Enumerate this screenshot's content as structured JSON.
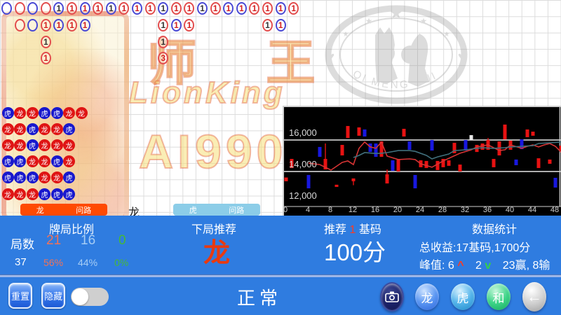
{
  "watermarks": {
    "shiwang": "师 王",
    "lionking": "LionKing",
    "ai990": "AI990",
    "qmh_text": "QI MENG HUI"
  },
  "top_road": {
    "cells": [
      [
        0,
        0,
        "B",
        "",
        ""
      ],
      [
        0,
        1,
        "R",
        "",
        ""
      ],
      [
        0,
        2,
        "B",
        "",
        ""
      ],
      [
        0,
        3,
        "R",
        "",
        ""
      ],
      [
        0,
        4,
        "B",
        "1",
        "k"
      ],
      [
        0,
        5,
        "R",
        "1",
        "r"
      ],
      [
        0,
        6,
        "B",
        "1",
        "r"
      ],
      [
        0,
        7,
        "R",
        "1",
        "r"
      ],
      [
        0,
        8,
        "B",
        "1",
        "k"
      ],
      [
        0,
        9,
        "R",
        "1",
        "r"
      ],
      [
        0,
        10,
        "B",
        "1",
        "r"
      ],
      [
        0,
        11,
        "R",
        "1",
        "r"
      ],
      [
        0,
        12,
        "B",
        "1",
        "k"
      ],
      [
        0,
        13,
        "R",
        "1",
        "r"
      ],
      [
        0,
        14,
        "R",
        "1",
        "r"
      ],
      [
        0,
        15,
        "B",
        "1",
        "k"
      ],
      [
        0,
        16,
        "R",
        "1",
        "r"
      ],
      [
        0,
        17,
        "B",
        "1",
        "r"
      ],
      [
        0,
        18,
        "B",
        "1",
        "r"
      ],
      [
        0,
        19,
        "R",
        "1",
        "r"
      ],
      [
        0,
        20,
        "R",
        "1",
        "r"
      ],
      [
        0,
        21,
        "B",
        "1",
        "r"
      ],
      [
        0,
        22,
        "R",
        "1",
        "r"
      ],
      [
        1,
        1,
        "R",
        "",
        ""
      ],
      [
        1,
        2,
        "B",
        "",
        ""
      ],
      [
        1,
        3,
        "R",
        "1",
        "r"
      ],
      [
        1,
        4,
        "B",
        "1",
        "r"
      ],
      [
        1,
        5,
        "R",
        "1",
        "r"
      ],
      [
        1,
        6,
        "B",
        "1",
        "r"
      ],
      [
        1,
        12,
        "R",
        "1",
        "k"
      ],
      [
        1,
        13,
        "B",
        "1",
        "r"
      ],
      [
        1,
        14,
        "R",
        "1",
        "r"
      ],
      [
        1,
        20,
        "R",
        "1",
        "k"
      ],
      [
        1,
        21,
        "B",
        "1",
        "r"
      ],
      [
        2,
        3,
        "R",
        "1",
        "k"
      ],
      [
        2,
        12,
        "R",
        "1",
        "k"
      ],
      [
        3,
        3,
        "R",
        "1",
        "r"
      ],
      [
        3,
        12,
        "R",
        "3",
        "r"
      ]
    ]
  },
  "bead_road": {
    "cells": [
      [
        0,
        0,
        "虎"
      ],
      [
        0,
        1,
        "龙"
      ],
      [
        0,
        2,
        "龙"
      ],
      [
        0,
        3,
        "虎"
      ],
      [
        0,
        4,
        "虎"
      ],
      [
        0,
        5,
        "龙"
      ],
      [
        0,
        6,
        "龙"
      ],
      [
        1,
        0,
        "龙"
      ],
      [
        1,
        1,
        "龙"
      ],
      [
        1,
        2,
        "虎"
      ],
      [
        1,
        3,
        "龙"
      ],
      [
        1,
        4,
        "龙"
      ],
      [
        1,
        5,
        "虎"
      ],
      [
        2,
        0,
        "龙"
      ],
      [
        2,
        1,
        "龙"
      ],
      [
        2,
        2,
        "虎"
      ],
      [
        2,
        3,
        "龙"
      ],
      [
        2,
        4,
        "龙"
      ],
      [
        2,
        5,
        "龙"
      ],
      [
        3,
        0,
        "虎"
      ],
      [
        3,
        1,
        "虎"
      ],
      [
        3,
        2,
        "龙"
      ],
      [
        3,
        3,
        "龙"
      ],
      [
        3,
        4,
        "虎"
      ],
      [
        3,
        5,
        "龙"
      ],
      [
        4,
        0,
        "虎"
      ],
      [
        4,
        1,
        "虎"
      ],
      [
        4,
        2,
        "虎"
      ],
      [
        4,
        3,
        "龙"
      ],
      [
        4,
        4,
        "龙"
      ],
      [
        4,
        5,
        "虎"
      ],
      [
        5,
        0,
        "龙"
      ],
      [
        5,
        1,
        "龙"
      ],
      [
        5,
        2,
        "龙"
      ],
      [
        5,
        3,
        "虎"
      ],
      [
        5,
        4,
        "虎"
      ],
      [
        5,
        5,
        "虎"
      ]
    ]
  },
  "ask_strip": {
    "dragon_left": "龙",
    "dragon_right": "问路",
    "current": "龙",
    "tiger_left": "虎",
    "tiger_right": "问路"
  },
  "chart_data": {
    "type": "candlestick",
    "y_ticks": [
      {
        "label": "16,000",
        "value": 16000
      },
      {
        "label": "14,000",
        "value": 14000
      },
      {
        "label": "12,000",
        "value": 12000
      }
    ],
    "x_ticks": [
      0,
      4,
      8,
      12,
      16,
      20,
      24,
      28,
      32,
      36,
      40,
      44,
      48
    ],
    "x_range": [
      0,
      50
    ],
    "y_range": [
      11700,
      18100
    ],
    "candles": [
      [
        0,
        "r",
        13620,
        13380
      ],
      [
        1,
        "r",
        14800,
        14220
      ],
      [
        4,
        "b",
        13780,
        12930
      ],
      [
        6,
        "b",
        15560,
        14930
      ],
      [
        7,
        "r",
        14800,
        14130,
        15780,
        null
      ],
      [
        9,
        "r",
        13160,
        13020
      ],
      [
        10,
        "r",
        15690,
        15020
      ],
      [
        11,
        "r",
        16890,
        16130
      ],
      [
        12,
        "r",
        13560,
        13380,
        null,
        13130
      ],
      [
        13,
        "r",
        16800,
        16270
      ],
      [
        14,
        "b",
        16670,
        16220
      ],
      [
        15,
        "b",
        15780,
        15240
      ],
      [
        16,
        "b",
        15780,
        14930
      ],
      [
        17,
        "r",
        15910,
        14930
      ],
      [
        18,
        "r",
        13820,
        13240,
        14130,
        null
      ],
      [
        19,
        "b",
        14710,
        14040
      ],
      [
        20,
        "r",
        14800,
        14000
      ],
      [
        21,
        "r",
        16710,
        16220
      ],
      [
        22,
        "b",
        15910,
        15380
      ],
      [
        23,
        "b",
        13780,
        12930
      ],
      [
        24,
        "r",
        14710,
        14270
      ],
      [
        25,
        "r",
        14670,
        14220
      ],
      [
        26,
        "b",
        16000,
        15330
      ],
      [
        27,
        "r",
        14670,
        14090
      ],
      [
        28,
        "r",
        14800,
        14270
      ],
      [
        29,
        "r",
        14710,
        14360
      ],
      [
        30,
        "r",
        15820,
        15160
      ],
      [
        31,
        "r",
        14440,
        14000
      ],
      [
        32,
        "b",
        16000,
        15330
      ],
      [
        33,
        "w",
        16310,
        16000
      ],
      [
        34,
        "r",
        15690,
        15240
      ],
      [
        35,
        "r",
        15780,
        15380
      ],
      [
        36,
        "r",
        16000,
        15380,
        16130,
        null
      ],
      [
        37,
        "r",
        14800,
        14270
      ],
      [
        38,
        "r",
        15910,
        15020
      ],
      [
        39,
        "r",
        16980,
        16040
      ],
      [
        40,
        "r",
        15960,
        15380
      ],
      [
        41,
        "b",
        14760,
        14400
      ],
      [
        42,
        "b",
        16040,
        15420
      ],
      [
        43,
        "r",
        16670,
        16180
      ],
      [
        44,
        "r",
        16530,
        16270
      ],
      [
        45,
        "r",
        14840,
        14220
      ],
      [
        47,
        "r",
        14760,
        14490
      ],
      [
        48,
        "b",
        13600,
        12980
      ],
      [
        49,
        "r",
        15640,
        15330
      ]
    ],
    "series": [
      {
        "name": "ma-red",
        "color": "#d63434",
        "points": [
          [
            4,
            14530
          ],
          [
            6,
            14440
          ],
          [
            8,
            14090
          ],
          [
            10,
            14580
          ],
          [
            11,
            14670
          ],
          [
            12,
            14440
          ],
          [
            13,
            15470
          ],
          [
            14,
            15870
          ],
          [
            15,
            15560
          ],
          [
            16,
            15470
          ],
          [
            17,
            15870
          ],
          [
            18,
            14980
          ],
          [
            20,
            14760
          ],
          [
            22,
            14800
          ],
          [
            23,
            14760
          ],
          [
            24,
            14490
          ],
          [
            26,
            14270
          ],
          [
            28,
            14670
          ],
          [
            30,
            15000
          ],
          [
            31,
            15160
          ],
          [
            33,
            15380
          ],
          [
            34,
            15560
          ],
          [
            36,
            15690
          ],
          [
            38,
            15330
          ],
          [
            39,
            15380
          ],
          [
            40,
            15690
          ],
          [
            42,
            15470
          ],
          [
            43,
            15600
          ],
          [
            44,
            15690
          ],
          [
            45,
            15560
          ],
          [
            46,
            15690
          ],
          [
            47,
            15780
          ],
          [
            48,
            15600
          ],
          [
            49,
            15240
          ],
          [
            50,
            15160
          ]
        ]
      },
      {
        "name": "ma-teal",
        "color": "#41707c",
        "points": [
          [
            12,
            14890
          ],
          [
            13,
            15020
          ],
          [
            14,
            15200
          ],
          [
            16,
            15140
          ],
          [
            17,
            15160
          ],
          [
            18,
            15200
          ],
          [
            20,
            15330
          ],
          [
            22,
            15330
          ],
          [
            23,
            15280
          ],
          [
            25,
            15020
          ],
          [
            26,
            14800
          ],
          [
            27,
            14930
          ],
          [
            29,
            15110
          ],
          [
            30,
            15330
          ],
          [
            32,
            15380
          ],
          [
            34,
            15470
          ],
          [
            35,
            15510
          ],
          [
            37,
            15470
          ],
          [
            39,
            15510
          ],
          [
            40,
            15560
          ],
          [
            42,
            15600
          ],
          [
            44,
            15640
          ],
          [
            45,
            15780
          ],
          [
            47,
            15820
          ],
          [
            49,
            15870
          ],
          [
            50,
            15890
          ]
        ]
      }
    ]
  },
  "panel": {
    "ratio_header": "牌局比例",
    "rounds_label": "局数",
    "rounds_value": "37",
    "dragon_count": "21",
    "dragon_pct": "56%",
    "tiger_count": "16",
    "tiger_pct": "44%",
    "tie_count": "0",
    "tie_pct": "0%",
    "recommend_header": "下局推荐",
    "recommend_value": "龙",
    "bet_prefix": "推荐",
    "bet_num": "1",
    "bet_suffix": "基码",
    "bet_amount": "100分",
    "stats_header": "数据统计",
    "total_line": "总收益:17基码,1700分",
    "peak_prefix": "峰值: 6",
    "peak_up": "^",
    "peak_mid": "2",
    "peak_down": "v",
    "peak_suffix": "23赢, 8输"
  },
  "toolbar": {
    "reset": "重置",
    "hide": "隐藏",
    "mode": "正常",
    "dragon": "龙",
    "tiger": "虎",
    "tie": "和",
    "back_arrow": "←"
  }
}
